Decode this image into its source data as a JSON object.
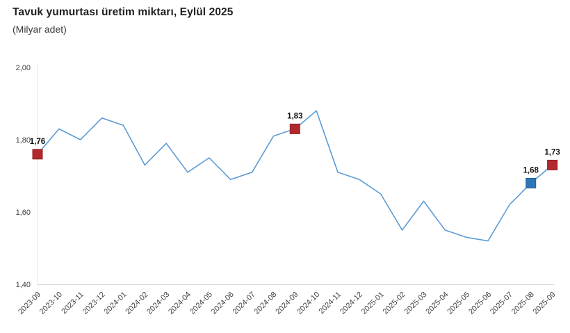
{
  "header": {
    "title": "Tavuk yumurtası üretim miktarı, Eylül 2025",
    "subtitle": "(Milyar adet)"
  },
  "chart_data": {
    "type": "line",
    "title": "Tavuk yumurtası üretim miktarı, Eylül 2025",
    "subtitle": "(Milyar adet)",
    "unit": "Milyar adet",
    "categories": [
      "2023-09",
      "2023-10",
      "2023-11",
      "2023-12",
      "2024-01",
      "2024-02",
      "2024-03",
      "2024-04",
      "2024-05",
      "2024-06",
      "2024-07",
      "2024-08",
      "2024-09",
      "2024-10",
      "2024-11",
      "2024-12",
      "2025-01",
      "2025-02",
      "2025-03",
      "2025-04",
      "2025-05",
      "2025-06",
      "2025-07",
      "2025-08",
      "2025-09"
    ],
    "values": [
      1.76,
      1.83,
      1.8,
      1.86,
      1.84,
      1.73,
      1.79,
      1.71,
      1.75,
      1.69,
      1.71,
      1.81,
      1.83,
      1.88,
      1.71,
      1.69,
      1.65,
      1.55,
      1.63,
      1.55,
      1.53,
      1.52,
      1.62,
      1.68,
      1.73
    ],
    "ylim": [
      1.4,
      2.0
    ],
    "yticks": [
      2.0,
      1.8,
      1.6,
      1.4
    ],
    "ytick_labels": [
      "2,00",
      "1,80",
      "1,60",
      "1,40"
    ],
    "xlabel": "",
    "ylabel": "",
    "grid": "off",
    "legend": "none",
    "line_color": "#5b9bd5",
    "axis_line_color": "#d6d6d6",
    "yaxis_line_color": "#e4e4e4",
    "tick_label_color": "#404040",
    "highlighted_points": [
      {
        "category": "2023-09",
        "index": 0,
        "value": 1.76,
        "label": "1,76",
        "fill": "#b3282d",
        "stroke": "#8d2024"
      },
      {
        "category": "2024-09",
        "index": 12,
        "value": 1.83,
        "label": "1,83",
        "fill": "#b3282d",
        "stroke": "#8d2024"
      },
      {
        "category": "2025-08",
        "index": 23,
        "value": 1.68,
        "label": "1,68",
        "fill": "#2e75b6",
        "stroke": "#215f99"
      },
      {
        "category": "2025-09",
        "index": 24,
        "value": 1.73,
        "label": "1,73",
        "fill": "#b3282d",
        "stroke": "#8d2024"
      }
    ]
  }
}
